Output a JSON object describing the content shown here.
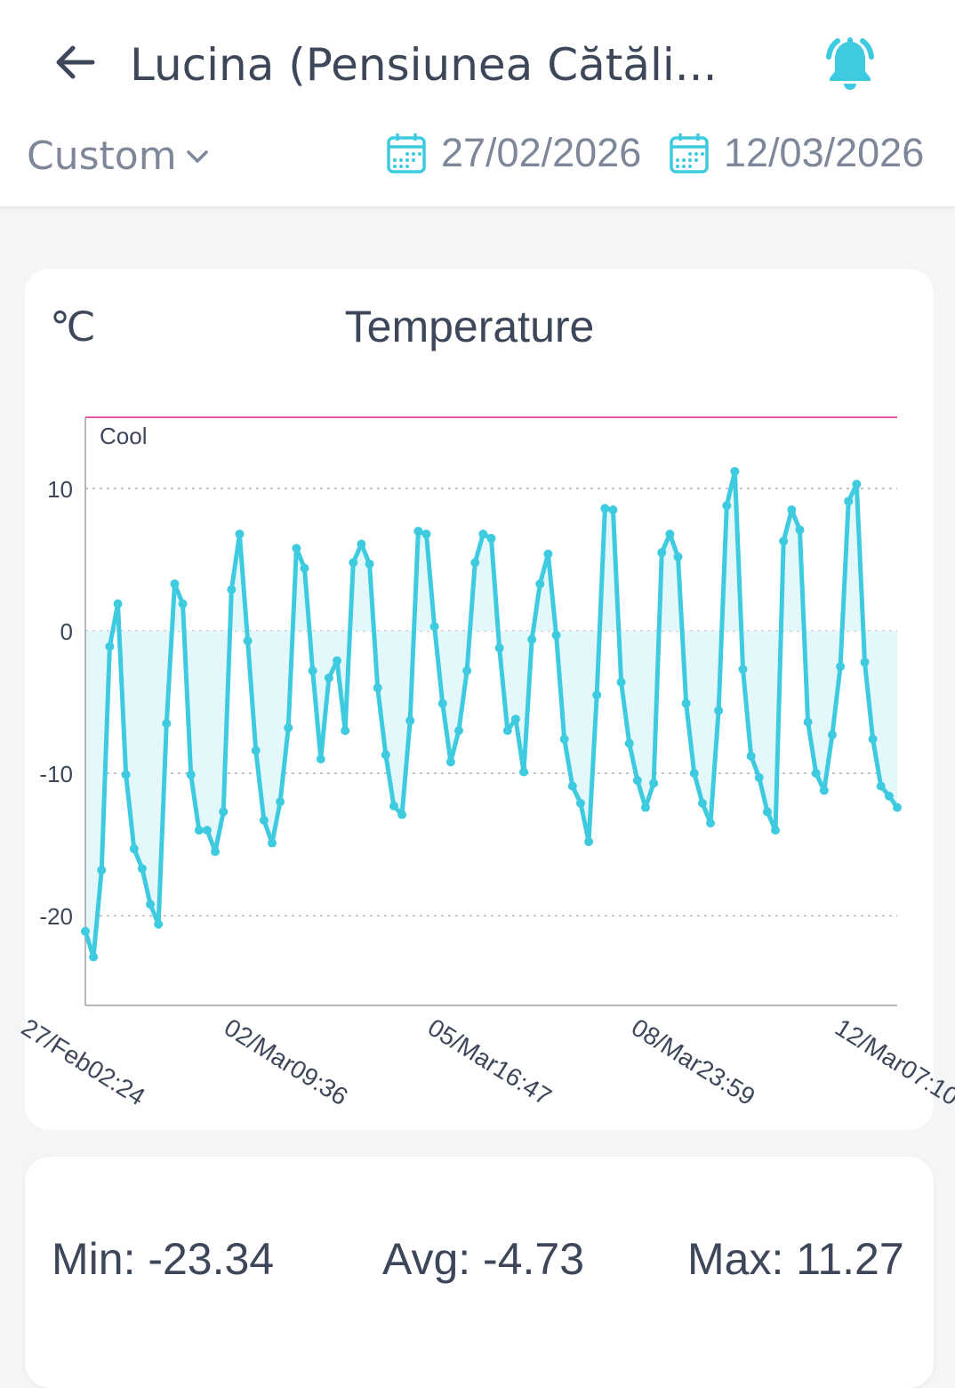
{
  "header": {
    "title": "Lucina (Pensiunea Cătăli...",
    "back_icon": "arrow-left-icon",
    "alarm_icon": "bell-ringing-icon"
  },
  "filters": {
    "range_label": "Custom",
    "start_date": "27/02/2026",
    "end_date": "12/03/2026"
  },
  "colors": {
    "accent": "#3ecbe0",
    "threshold": "#e05ca0",
    "text": "#3d4759",
    "muted": "#7d8799"
  },
  "chart_data": {
    "type": "line",
    "title": "Temperature",
    "ylabel": "℃",
    "ylim": [
      -26.3,
      15
    ],
    "yticks": [
      10,
      0,
      -10,
      -20
    ],
    "ytick_labels": [
      "10",
      "0",
      "-10",
      "-20"
    ],
    "xtick_labels": [
      "27/Feb02:24",
      "02/Mar09:36",
      "05/Mar16:47",
      "08/Mar23:59",
      "12/Mar07:10"
    ],
    "threshold": {
      "label": "Cool",
      "value": 15
    },
    "grid": true,
    "fill_baseline": 0,
    "values": [
      -21.1,
      -22.9,
      -16.8,
      -1.1,
      1.9,
      -10.1,
      -15.3,
      -16.7,
      -19.2,
      -20.6,
      -6.5,
      3.3,
      1.9,
      -10.1,
      -14,
      -14,
      -15.5,
      -12.7,
      2.9,
      6.8,
      -0.7,
      -8.4,
      -13.3,
      -14.9,
      -12,
      -6.8,
      5.8,
      4.4,
      -2.8,
      -9,
      -3.3,
      -2.1,
      -7,
      4.8,
      6.1,
      4.7,
      -4,
      -8.7,
      -12.3,
      -12.9,
      -6.3,
      7,
      6.8,
      0.3,
      -5.1,
      -9.2,
      -7,
      -2.8,
      4.8,
      6.8,
      6.5,
      -1.2,
      -7,
      -6.2,
      -9.9,
      -0.6,
      3.3,
      5.4,
      -0.3,
      -7.6,
      -10.9,
      -12.1,
      -14.8,
      -4.5,
      8.6,
      8.5,
      -3.6,
      -7.9,
      -10.5,
      -12.4,
      -10.7,
      5.5,
      6.8,
      5.2,
      -5.1,
      -10,
      -12.1,
      -13.5,
      -5.6,
      8.8,
      11.2,
      -2.7,
      -8.8,
      -10.3,
      -12.7,
      -14,
      6.3,
      8.5,
      7.1,
      -6.4,
      -10,
      -11.2,
      -7.3,
      -2.5,
      9.1,
      10.3,
      -2.2,
      -7.6,
      -10.9,
      -11.6,
      -12.4
    ]
  },
  "stats": {
    "min": "Min: -23.34",
    "avg": "Avg: -4.73",
    "max": "Max: 11.27"
  }
}
